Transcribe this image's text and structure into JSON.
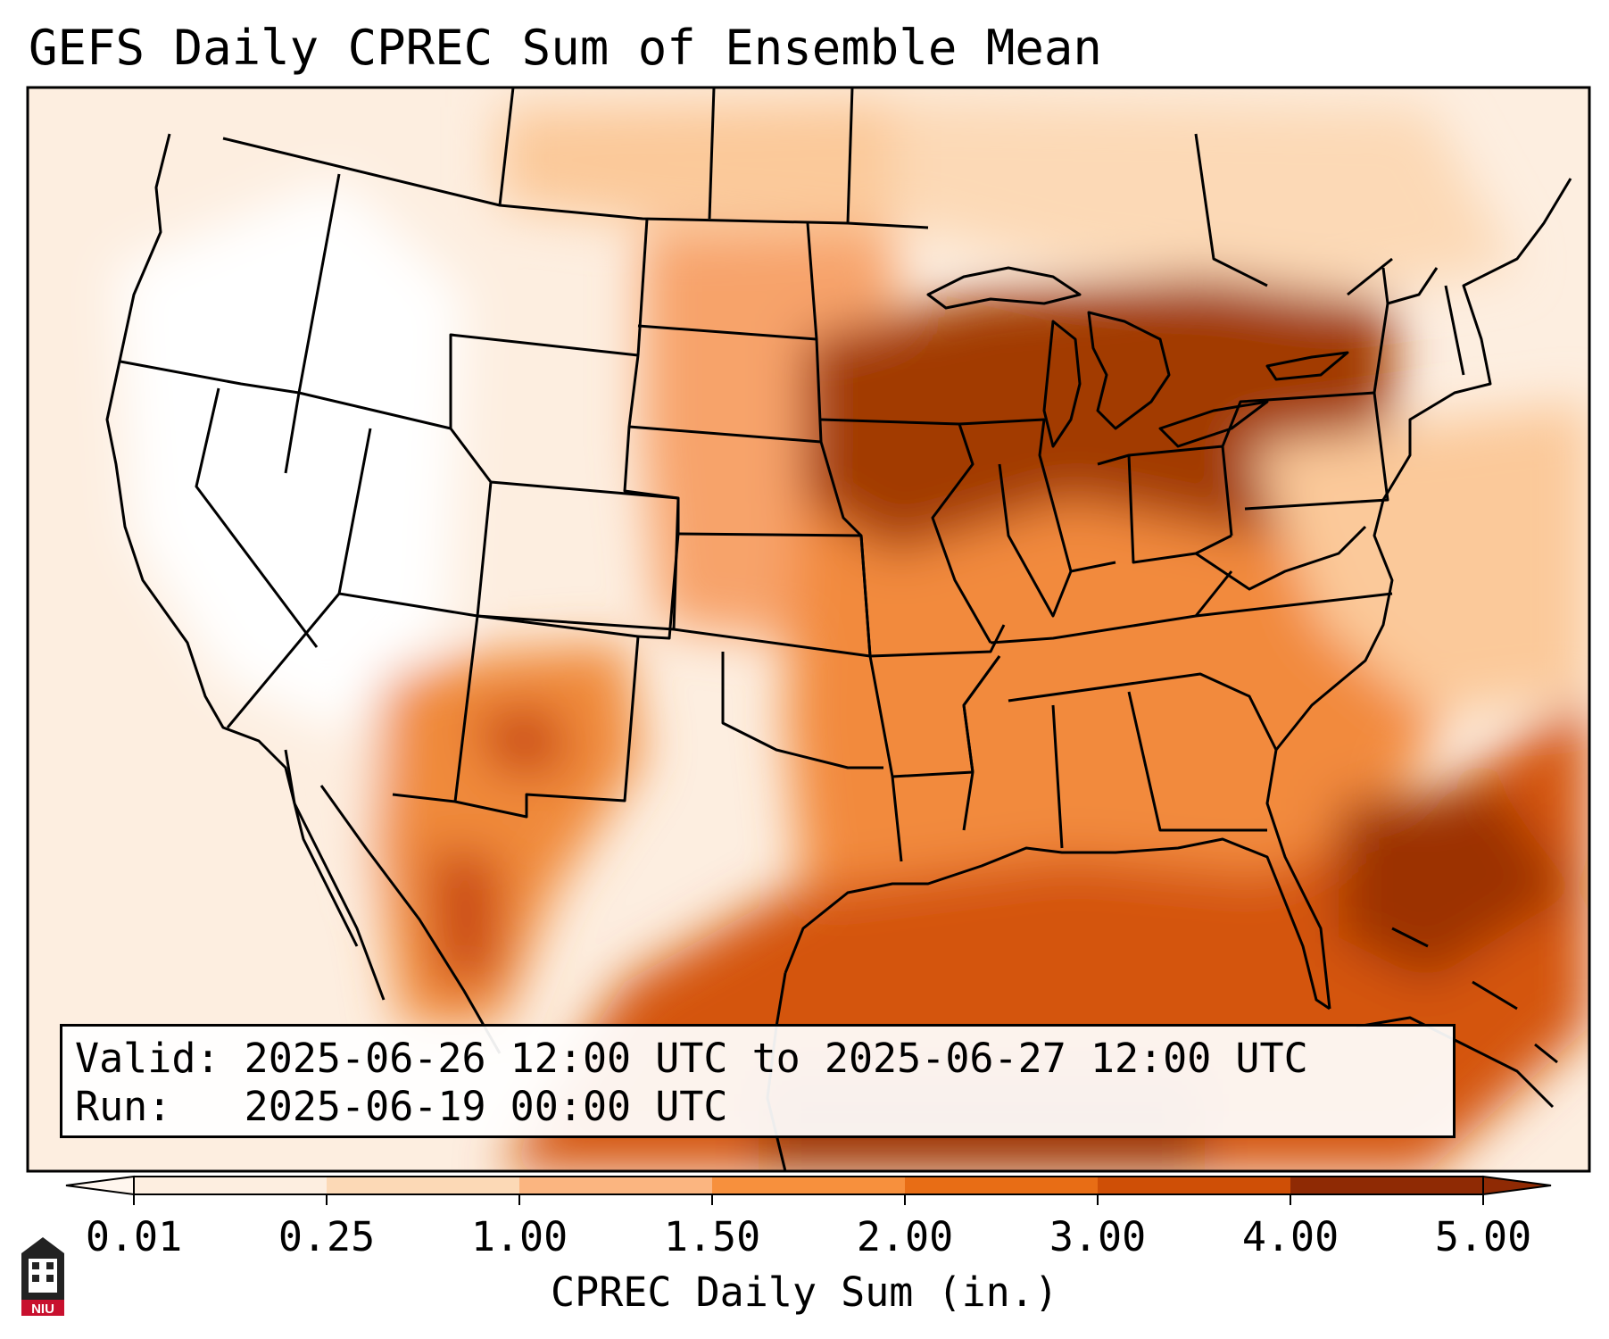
{
  "title": "GEFS Daily CPREC Sum of Ensemble Mean",
  "info": {
    "valid_line": "Valid: 2025-06-26 12:00 UTC to 2025-06-27 12:00 UTC",
    "run_line": "Run:   2025-06-19 00:00 UTC"
  },
  "colorbar": {
    "label": "CPREC Daily Sum (in.)",
    "ticks": [
      "0.01",
      "0.25",
      "1.00",
      "1.50",
      "2.00",
      "3.00",
      "4.00",
      "5.00"
    ],
    "colors": [
      "#fdeee0",
      "#fcd9b6",
      "#fbb580",
      "#f7903d",
      "#e86d15",
      "#cf4f06",
      "#8f2a04"
    ],
    "under_color": "#fff6ee",
    "over_color": "#8f2a04"
  },
  "logo": {
    "text": "NIU",
    "color": "#c8102e"
  }
}
